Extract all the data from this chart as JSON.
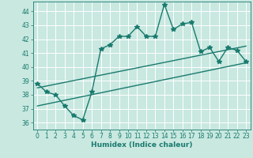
{
  "title": "",
  "xlabel": "Humidex (Indice chaleur)",
  "ylabel": "",
  "bg_color": "#c8e8e0",
  "grid_color": "#ffffff",
  "line_color": "#1a7a6e",
  "xlim": [
    -0.5,
    23.5
  ],
  "ylim": [
    35.5,
    44.7
  ],
  "xticks": [
    0,
    1,
    2,
    3,
    4,
    5,
    6,
    7,
    8,
    9,
    10,
    11,
    12,
    13,
    14,
    15,
    16,
    17,
    18,
    19,
    20,
    21,
    22,
    23
  ],
  "yticks": [
    36,
    37,
    38,
    39,
    40,
    41,
    42,
    43,
    44
  ],
  "main_series_x": [
    0,
    1,
    2,
    3,
    4,
    5,
    6,
    7,
    8,
    9,
    10,
    11,
    12,
    13,
    14,
    15,
    16,
    17,
    18,
    19,
    20,
    21,
    22,
    23
  ],
  "main_series_y": [
    38.8,
    38.2,
    38.0,
    37.2,
    36.5,
    36.2,
    38.2,
    41.3,
    41.6,
    42.2,
    42.2,
    42.9,
    42.2,
    42.2,
    44.5,
    42.7,
    43.1,
    43.2,
    41.1,
    41.4,
    40.4,
    41.4,
    41.2,
    40.4
  ],
  "lower_line_x": [
    0,
    23
  ],
  "lower_line_y": [
    37.2,
    40.3
  ],
  "upper_line_x": [
    0,
    23
  ],
  "upper_line_y": [
    38.5,
    41.5
  ],
  "marker": "*",
  "marker_size": 4,
  "line_width": 1.0
}
